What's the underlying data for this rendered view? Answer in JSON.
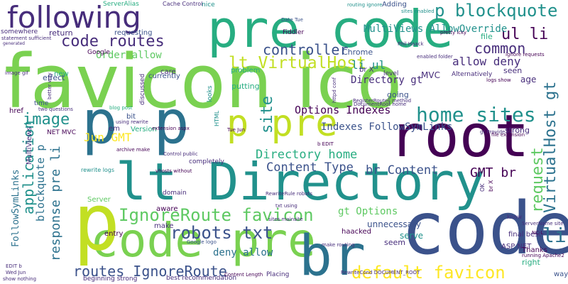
{
  "colors": {
    "background": "#ffffff",
    "palette": [
      "#440154",
      "#3b528b",
      "#21918c",
      "#5ec962",
      "#fde725",
      "#2c728e",
      "#27ad81",
      "#472d7b",
      "#7ad151",
      "#c2df23"
    ]
  },
  "words": {
    "favicon_ico": "favicon ico",
    "code": "code",
    "lt_directory": "lt Directory",
    "pre_code_1": "pre code",
    "code_pre": "code pre",
    "p_p": "p p",
    "root": "root",
    "following": "following",
    "p": "p",
    "br": "br",
    "p_pre": "p pre",
    "home_sites": "home sites",
    "ignoreroute_favicon": "IgnoreRoute favicon",
    "robots_txt": "robots txt",
    "default_favicon": "default favicon",
    "p_blockquote": "p blockquote",
    "lt_virtualhost": "lt VirtualHost",
    "code_routes": "code routes",
    "controller": "controller",
    "ul_li": "ul li",
    "common": "common",
    "application": "application",
    "image": "image",
    "response_pre_li": "response pre li",
    "routes_ignoreroute": "routes IgnoreRoute",
    "request": "request",
    "virtualhost_gt": "VirtualHost gt",
    "site": "site",
    "directory_home": "Directory home",
    "content_type": "Content Type",
    "br_content": "br Content",
    "gmt_br": "GMT br",
    "jun_gmt": "Jun GMT",
    "options_indexes": "Options Indexes",
    "indexes_followsymlinks": "Indexes FollowSymLinks",
    "multiviews_allowoverride": "MultiViews AllowOverride",
    "allow_deny": "allow deny",
    "order_allow": "Order allow",
    "li_ul": "li ul",
    "directory_gt": "Directory gt",
    "gt_options": "gt Options",
    "deny_allow": "deny allow",
    "followsymlinks": "FollowSymLinks",
    "blockquote_p": "blockquote p",
    "li": "li",
    "unnecessary": "unnecessary",
    "serve": "serve",
    "asp_net": "ASP NET",
    "mvc": "MVC",
    "chrome": "Chrome",
    "problem": "problem",
    "putting": "putting",
    "going": "going",
    "seen": "seen",
    "age": "age",
    "file": "file",
    "strong": "strong",
    "seem": "seem",
    "right": "right",
    "way": "way",
    "thanks": "Thanks",
    "final_best": "final best",
    "hacked": "haacked",
    "make": "make",
    "entry": "entry",
    "version": "Version",
    "return": "return",
    "requesting": "requesting",
    "somewhere": "somewhere",
    "google": "Google",
    "effect": "effect",
    "currently": "currently",
    "care": "care",
    "new": "new",
    "href": "href",
    "time": "time",
    "em": "em",
    "bit": "bit",
    "domain": "domain",
    "aware": "aware",
    "completely": "completely",
    "adding": "Adding",
    "nice": "nice",
    "fiddler": "Fiddler",
    "alternatively": "Alternatively",
    "level": "level",
    "br_x": "br X",
    "server_alias": "ServerAlias",
    "cache_control": "Cache Control",
    "net_mvc": "NET MVC",
    "placing": "Placing",
    "best_recommendation": "best recommendation",
    "beginning_strong": "beginning strong",
    "looks": "looks",
    "discussed": "discussed",
    "multiviews": "MultiViews",
    "server": "Server",
    "html": "HTML",
    "rewrite_logs": "rewrite logs",
    "phil_haack": "Phil Haack",
    "pretty_icky": "pretty icky",
    "blog_post": "blog post",
    "image_gif": "image gif",
    "sites_enabled": "sites enabled",
    "routing_ignore": "routing ignore",
    "date_tue": "Date Tue",
    "archive_make": "archive make",
    "gt_provide": "gt Provide",
    "file_extension": "file extension",
    "google_logo": "Google logo",
    "content_length": "Content Length",
    "document_root": "DocumentRoot home",
    "vhosts_without": "vhosts without",
    "two_questions": "two questions",
    "using_rewrite": "using rewrite",
    "extension_aspx": "extension aspx",
    "control_public": "Control public",
    "sites_mainsite": "sites mainsite",
    "ok": "OK",
    "br_x2": "br X",
    "txt_using": "txt using",
    "make_routing": "make routing",
    "running_apache2": "running Apache2",
    "servername_site": "ServerName site",
    "know": "know",
    "nc_l": "NC L",
    "wed_jun": "Wed Jun",
    "edit_b": "EDIT b",
    "show_nothing": "show nothing",
    "tue_jun": "Tue Jun",
    "rewriterule_robots": "RewriteRule robots",
    "rewritecond": "RewriteCond DOCUMENT_ROOT",
    "enabled_folder": "enabled folder",
    "ignore_requests": "ignore requests",
    "httpd_conf": "httpd conf",
    "better_way": "better way",
    "registerroutes": "RegisterRoutes method",
    "b_edit": "b EDIT",
    "logs_show": "logs show",
    "statement_sufficient": "statement sufficient",
    "generated": "generated"
  }
}
